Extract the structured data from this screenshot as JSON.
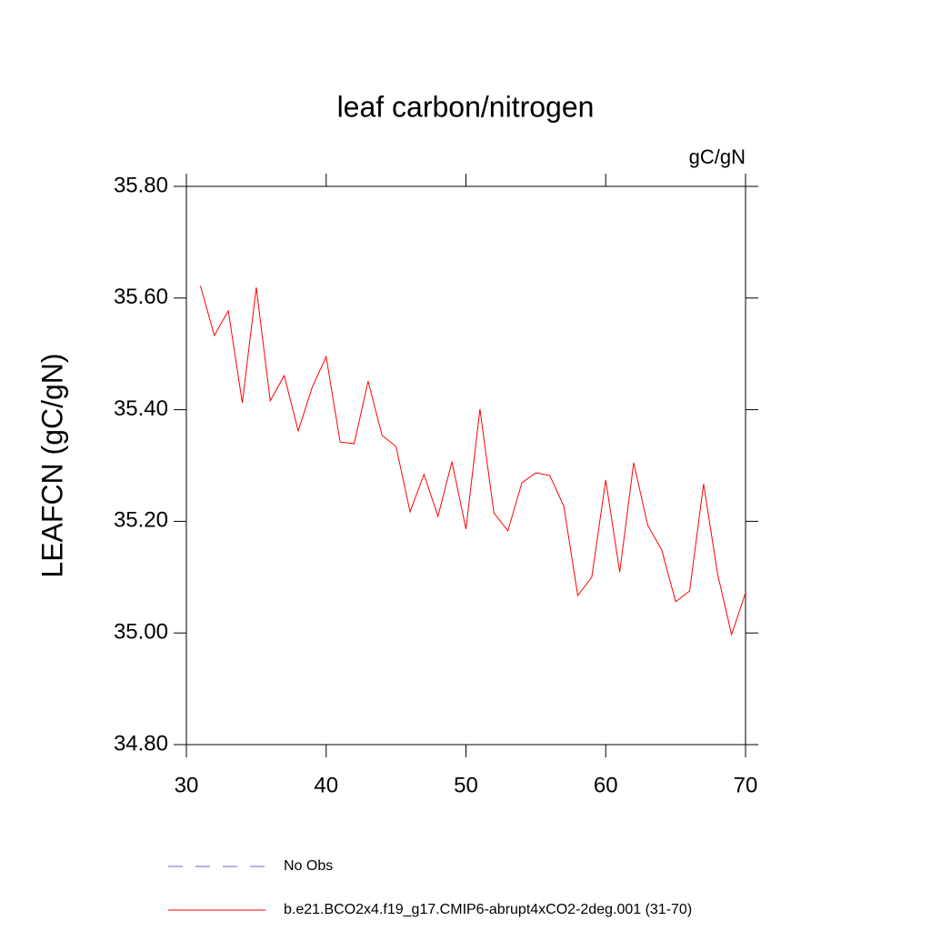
{
  "chart_data": {
    "type": "line",
    "title": "leaf carbon/nitrogen",
    "units": "gC/gN",
    "y_label": "LEAFCN  (gC/gN)",
    "x": [
      31,
      32,
      33,
      34,
      35,
      36,
      37,
      38,
      39,
      40,
      41,
      42,
      43,
      44,
      45,
      46,
      47,
      48,
      49,
      50,
      51,
      52,
      53,
      54,
      55,
      56,
      57,
      58,
      59,
      60,
      61,
      62,
      63,
      64,
      65,
      66,
      67,
      68,
      69,
      70
    ],
    "series": [
      {
        "name": "b.e21.BCO2x4.f19_g17.CMIP6-abrupt4xCO2-2deg.001 (31-70)",
        "color": "#ff0000",
        "values": [
          35.622,
          35.533,
          35.577,
          35.412,
          35.619,
          35.416,
          35.461,
          35.362,
          35.44,
          35.495,
          35.342,
          35.339,
          35.451,
          35.354,
          35.334,
          35.217,
          35.284,
          35.209,
          35.307,
          35.186,
          35.401,
          35.215,
          35.183,
          35.269,
          35.287,
          35.282,
          35.227,
          35.067,
          35.1,
          35.274,
          35.109,
          35.305,
          35.193,
          35.149,
          35.056,
          35.075,
          35.267,
          35.106,
          34.997,
          35.072
        ]
      }
    ],
    "extra_legend": {
      "name": "No Obs",
      "color": "#6a6acd",
      "dashed": true
    },
    "xlim": [
      30,
      70
    ],
    "xticks": [
      30,
      40,
      50,
      60,
      70
    ],
    "ylim": [
      34.8,
      35.8
    ],
    "yticks": [
      {
        "value": 34.8,
        "label": "34.80"
      },
      {
        "value": 35.0,
        "label": "35.00"
      },
      {
        "value": 35.2,
        "label": "35.20"
      },
      {
        "value": 35.4,
        "label": "35.40"
      },
      {
        "value": 35.6,
        "label": "35.60"
      },
      {
        "value": 35.8,
        "label": "35.80"
      }
    ]
  }
}
